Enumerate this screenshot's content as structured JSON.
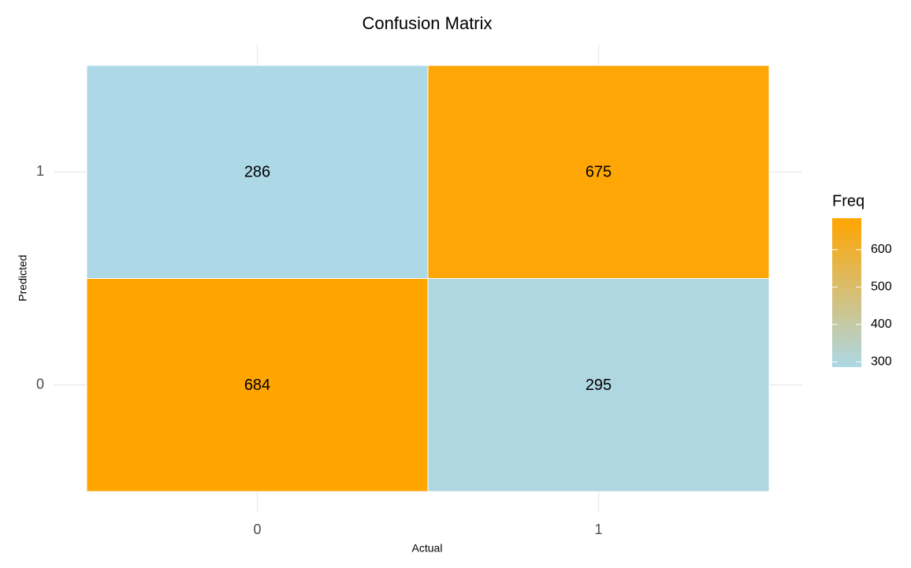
{
  "chart_data": {
    "type": "heatmap",
    "title": "Confusion Matrix",
    "x_label": "Actual",
    "y_label": "Predicted",
    "x_categories": [
      "0",
      "1"
    ],
    "y_categories": [
      "0",
      "1"
    ],
    "values": [
      [
        684,
        295
      ],
      [
        286,
        675
      ]
    ],
    "low_color": "#add8e6",
    "high_color": "#ffa500",
    "legend_title": "Freq",
    "colorbar_lim": [
      286,
      684
    ],
    "colorbar_ticks": [
      300,
      400,
      500,
      600
    ],
    "grid": true
  }
}
